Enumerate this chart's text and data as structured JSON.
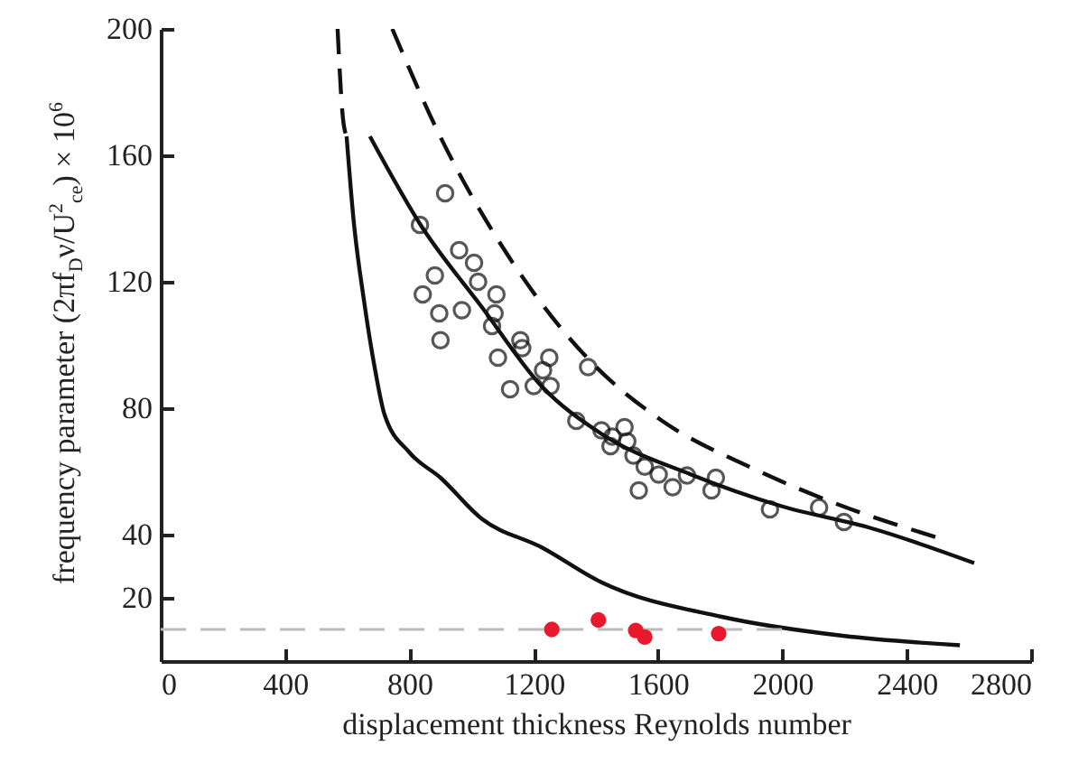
{
  "chart_data": {
    "type": "scatter",
    "xlabel": "displacement thickness Reynolds number",
    "ylabel": "frequency parameter (2πf$_{D}$ν/U$^{2}$$_{ce}$) × 10$^{6}$",
    "xlim": [
      0,
      2800
    ],
    "ylim": [
      0,
      200
    ],
    "xticks": [
      0,
      400,
      800,
      1200,
      1600,
      2000,
      2400,
      2800
    ],
    "yticks": [
      20,
      40,
      80,
      120,
      160,
      200
    ],
    "grid": false,
    "series": [
      {
        "type": "line",
        "line_style": "dashed",
        "color": "#111111",
        "x": [
          745,
          894,
          1126,
          1381,
          1613,
          1904,
          2194,
          2501
        ],
        "values": [
          200,
          167,
          127,
          95,
          76,
          61,
          49,
          39
        ]
      },
      {
        "type": "line",
        "line_style": "dashed",
        "color": "#111111",
        "x": [
          569,
          586,
          598
        ],
        "values": [
          200,
          172,
          166
        ]
      },
      {
        "type": "line",
        "line_style": "solid",
        "color": "#111111",
        "x": [
          598,
          620,
          654,
          690,
          720,
          800,
          900,
          1033,
          1225,
          1416,
          1805,
          2194,
          2571
        ],
        "values": [
          166,
          140,
          114,
          92,
          78,
          66,
          58,
          45,
          36,
          25,
          14,
          8,
          5
        ]
      },
      {
        "type": "line",
        "line_style": "solid",
        "color": "#111111",
        "x": [
          673,
          836,
          1033,
          1225,
          1416,
          1706,
          1997,
          2287,
          2617
        ],
        "values": [
          166,
          138,
          112,
          87,
          72,
          59,
          49,
          42,
          31
        ]
      },
      {
        "type": "line",
        "line_style": "dashed",
        "color": "#bbbbbb",
        "x": [
          0,
          2040
        ],
        "values": [
          10,
          10
        ]
      },
      {
        "marker": "circle",
        "color": "#111111",
        "x": [
          915,
          834,
          960,
          1008,
          882,
          1021,
          843,
          1080,
          896,
          969,
          1074,
          1066,
          900,
          1157,
          1163,
          1085,
          1250,
          1375,
          1230,
          1254,
          1200,
          1124,
          1337,
          1418,
          1492,
          1453,
          1501,
          1447,
          1521,
          1557,
          1602,
          1693,
          1647,
          1538,
          1786,
          1772,
          1960,
          2118,
          2198
        ],
        "values": [
          148,
          138,
          130,
          126,
          122,
          120,
          116,
          116,
          110,
          111,
          110,
          106,
          101.5,
          101.5,
          99,
          96,
          96,
          93,
          92,
          87,
          87,
          86,
          76,
          73,
          74,
          71,
          69.5,
          68,
          65,
          61.5,
          59,
          58.7,
          55,
          54,
          58,
          54,
          48,
          48.6,
          44
        ]
      },
      {
        "color": "#e8192c",
        "x": [
          1258,
          1408,
          1528,
          1557,
          1795
        ],
        "values": [
          10,
          13,
          9.7,
          7.6,
          8.7
        ]
      }
    ]
  }
}
